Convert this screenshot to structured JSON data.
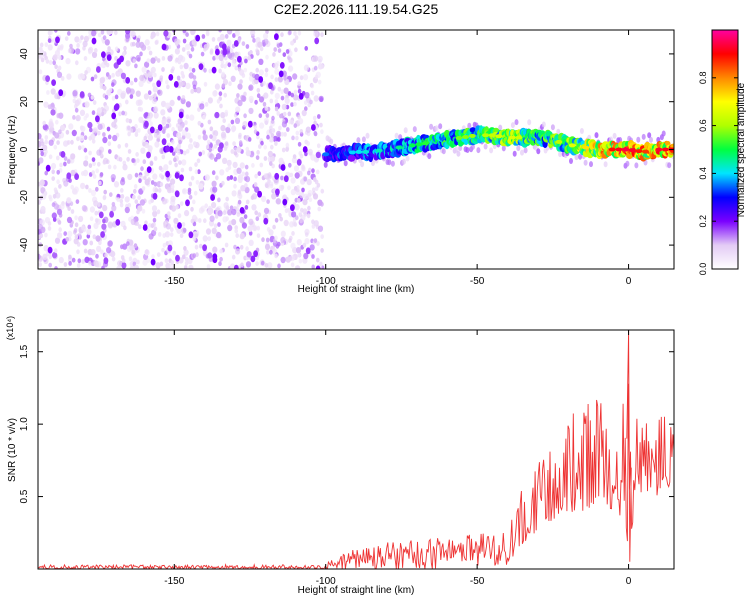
{
  "figure_title": "C2E2.2026.111.19.54.G25",
  "chart_data": [
    {
      "type": "heatmap",
      "title": "C2E2.2026.111.19.54.G25",
      "xlabel": "Height of straight line (km)",
      "ylabel": "Frequency (Hz)",
      "xlim": [
        -195,
        15
      ],
      "ylim": [
        -50,
        50
      ],
      "xticks": [
        -150,
        -100,
        -50,
        0
      ],
      "yticks": [
        -40,
        -20,
        0,
        20,
        40
      ],
      "colorbar": {
        "label": "Normalized spectral amplitude",
        "range": [
          0,
          1
        ],
        "ticks": [
          0.0,
          0.2,
          0.4,
          0.6,
          0.8
        ],
        "colormap": [
          "#ffffff",
          "#e3cbf5",
          "#7a00ff",
          "#0000ff",
          "#00e5ff",
          "#00ff40",
          "#b0ff00",
          "#ffff00",
          "#ff8800",
          "#ff0000",
          "#ff00a0"
        ]
      },
      "noise_region": {
        "x": [
          -195,
          -101
        ],
        "freq": [
          -50,
          50
        ],
        "typical_amplitude": 0.12
      },
      "signal_trace": [
        {
          "x": -100,
          "freq": -2,
          "amp": 0.3
        },
        {
          "x": -95,
          "freq": -2,
          "amp": 0.33
        },
        {
          "x": -90,
          "freq": -1,
          "amp": 0.35
        },
        {
          "x": -85,
          "freq": -1,
          "amp": 0.38
        },
        {
          "x": -80,
          "freq": 0,
          "amp": 0.4
        },
        {
          "x": -75,
          "freq": 1,
          "amp": 0.42
        },
        {
          "x": -70,
          "freq": 2,
          "amp": 0.45
        },
        {
          "x": -65,
          "freq": 3,
          "amp": 0.48
        },
        {
          "x": -60,
          "freq": 4,
          "amp": 0.5
        },
        {
          "x": -55,
          "freq": 5,
          "amp": 0.52
        },
        {
          "x": -50,
          "freq": 6,
          "amp": 0.55
        },
        {
          "x": -45,
          "freq": 6,
          "amp": 0.58
        },
        {
          "x": -40,
          "freq": 5,
          "amp": 0.62
        },
        {
          "x": -35,
          "freq": 5,
          "amp": 0.58
        },
        {
          "x": -30,
          "freq": 5,
          "amp": 0.52
        },
        {
          "x": -25,
          "freq": 4,
          "amp": 0.55
        },
        {
          "x": -20,
          "freq": 2,
          "amp": 0.6
        },
        {
          "x": -15,
          "freq": 1,
          "amp": 0.66
        },
        {
          "x": -10,
          "freq": 0,
          "amp": 0.75
        },
        {
          "x": -5,
          "freq": 0,
          "amp": 0.85
        },
        {
          "x": 0,
          "freq": 0,
          "amp": 0.9
        },
        {
          "x": 5,
          "freq": -1,
          "amp": 0.8
        },
        {
          "x": 10,
          "freq": 0,
          "amp": 0.88
        },
        {
          "x": 15,
          "freq": 0,
          "amp": 0.85
        }
      ]
    },
    {
      "type": "line",
      "xlabel": "Height of straight line (km)",
      "ylabel": "SNR (10 * v/v)",
      "y_multiplier_label": "(x10⁴)",
      "y_multiplier": 10000,
      "xlim": [
        -195,
        15
      ],
      "ylim": [
        0,
        1.65
      ],
      "xticks": [
        -150,
        -100,
        -50,
        0
      ],
      "yticks": [
        0.5,
        1.0,
        1.5
      ],
      "ytick_labels": [
        "0.5",
        "1.0",
        "1.5"
      ],
      "series": [
        {
          "name": "SNR",
          "color": "#ee3333",
          "envelope": [
            {
              "x": -195,
              "lo": 0.0,
              "hi": 0.03
            },
            {
              "x": -101,
              "lo": 0.0,
              "hi": 0.03
            },
            {
              "x": -98,
              "lo": 0.0,
              "hi": 0.08
            },
            {
              "x": -90,
              "lo": 0.0,
              "hi": 0.14
            },
            {
              "x": -80,
              "lo": 0.0,
              "hi": 0.19
            },
            {
              "x": -70,
              "lo": 0.0,
              "hi": 0.22
            },
            {
              "x": -60,
              "lo": 0.0,
              "hi": 0.26
            },
            {
              "x": -50,
              "lo": 0.02,
              "hi": 0.3
            },
            {
              "x": -45,
              "lo": 0.02,
              "hi": 0.25
            },
            {
              "x": -40,
              "lo": 0.03,
              "hi": 0.35
            },
            {
              "x": -36,
              "lo": 0.15,
              "hi": 0.6
            },
            {
              "x": -30,
              "lo": 0.25,
              "hi": 0.75
            },
            {
              "x": -25,
              "lo": 0.3,
              "hi": 0.85
            },
            {
              "x": -20,
              "lo": 0.35,
              "hi": 1.05
            },
            {
              "x": -15,
              "lo": 0.4,
              "hi": 1.15
            },
            {
              "x": -10,
              "lo": 0.45,
              "hi": 1.2
            },
            {
              "x": -5,
              "lo": 0.4,
              "hi": 1.0
            },
            {
              "x": -1,
              "lo": 0.3,
              "hi": 1.25
            },
            {
              "x": 0,
              "lo": 0.05,
              "hi": 1.65
            },
            {
              "x": 2,
              "lo": 0.4,
              "hi": 1.05
            },
            {
              "x": 5,
              "lo": 0.55,
              "hi": 1.0
            },
            {
              "x": 10,
              "lo": 0.5,
              "hi": 1.1
            },
            {
              "x": 15,
              "lo": 0.6,
              "hi": 1.05
            }
          ]
        }
      ]
    }
  ]
}
